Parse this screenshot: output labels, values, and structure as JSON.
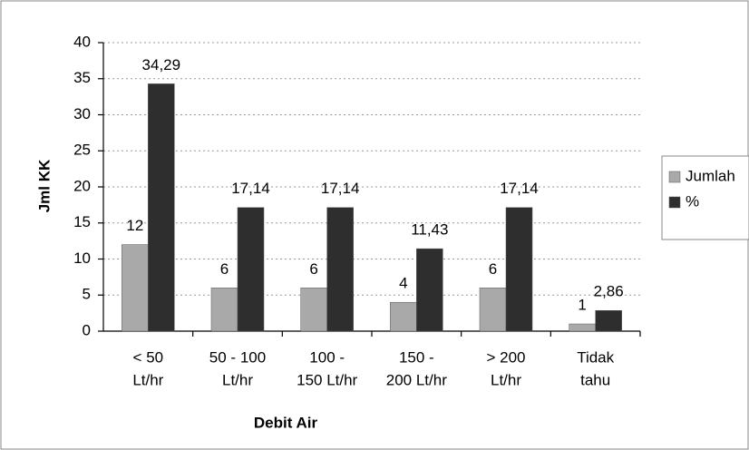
{
  "chart_data": {
    "type": "bar",
    "x_label": "Debit Air",
    "y_label": "Jml KK",
    "categories": [
      [
        "< 50",
        "Lt/hr"
      ],
      [
        "50 - 100",
        "Lt/hr"
      ],
      [
        "100 -",
        "150 Lt/hr"
      ],
      [
        "150 -",
        "200 Lt/hr"
      ],
      [
        "> 200",
        "Lt/hr"
      ],
      [
        "Tidak",
        "tahu"
      ]
    ],
    "series": [
      {
        "name": "Jumlah",
        "color": "#a9a9a9",
        "values": [
          12,
          6,
          6,
          4,
          6,
          1
        ]
      },
      {
        "name": "%",
        "color": "#2e2e2e",
        "values": [
          34.29,
          17.14,
          17.14,
          11.43,
          17.14,
          2.86
        ],
        "value_labels": [
          "34,29",
          "17,14",
          "17,14",
          "11,43",
          "17,14",
          "2,86"
        ]
      }
    ],
    "ylim": [
      0,
      40
    ],
    "yticks": [
      0,
      5,
      10,
      15,
      20,
      25,
      30,
      35,
      40
    ],
    "grid": true,
    "legend": "right"
  }
}
